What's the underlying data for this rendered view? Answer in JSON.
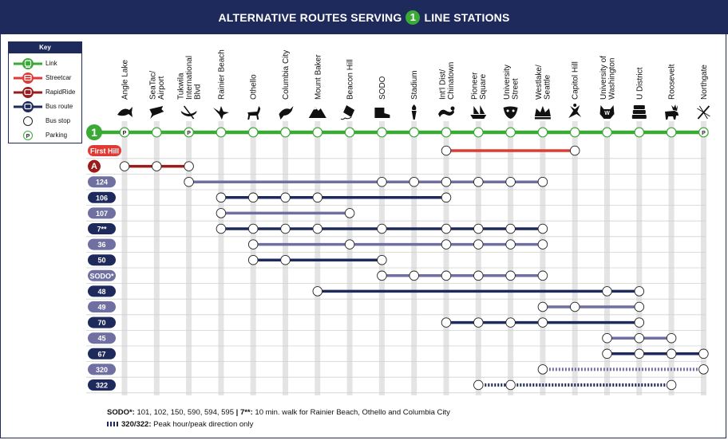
{
  "title": {
    "before": "ALTERNATIVE ROUTES SERVING",
    "line_badge": "1",
    "after": "LINE STATIONS"
  },
  "key": {
    "title": "Key",
    "items": [
      {
        "label": "Link",
        "color": "#3aa935",
        "icon": "train-icon"
      },
      {
        "label": "Streetcar",
        "color": "#e03a35",
        "icon": "streetcar-icon"
      },
      {
        "label": "RapidRide",
        "color": "#9b1b1b",
        "icon": "rapidride-bus-icon"
      },
      {
        "label": "Bus route",
        "color": "#1f2a5c",
        "icon": "bus-icon"
      },
      {
        "label": "Bus stop",
        "icon": "bus-stop-circle-icon"
      },
      {
        "label": "Parking",
        "icon": "parking-icon",
        "glyph": "P"
      }
    ]
  },
  "stations": [
    {
      "name": "Angle Lake",
      "lines": [
        "Angle Lake"
      ],
      "icon": "fish-icon",
      "parking": true
    },
    {
      "name": "SeaTac/ Airport",
      "lines": [
        "SeaTac/",
        "Airport"
      ],
      "icon": "airport-icon",
      "parking": false
    },
    {
      "name": "Tukwila International Blvd",
      "lines": [
        "Tukwila",
        "International",
        "Blvd"
      ],
      "icon": "canoe-icon",
      "parking": true
    },
    {
      "name": "Rainier Beach",
      "lines": [
        "Rainier Beach"
      ],
      "icon": "bird-icon",
      "parking": false
    },
    {
      "name": "Othello",
      "lines": [
        "Othello"
      ],
      "icon": "deer-icon",
      "parking": false
    },
    {
      "name": "Columbia City",
      "lines": [
        "Columbia City"
      ],
      "icon": "bird-branch-icon",
      "parking": false
    },
    {
      "name": "Mount Baker",
      "lines": [
        "Mount Baker"
      ],
      "icon": "mountain-icon",
      "parking": false
    },
    {
      "name": "Beacon Hill",
      "lines": [
        "Beacon Hill"
      ],
      "icon": "kite-icon",
      "parking": false
    },
    {
      "name": "SODO",
      "lines": [
        "SODO"
      ],
      "icon": "boot-icon",
      "parking": false
    },
    {
      "name": "Stadium",
      "lines": [
        "Stadium"
      ],
      "icon": "torch-icon",
      "parking": false
    },
    {
      "name": "Int'l Dist/ Chinatown",
      "lines": [
        "Int'l Dist/",
        "Chinatown"
      ],
      "icon": "dragon-icon",
      "parking": false
    },
    {
      "name": "Pioneer Square",
      "lines": [
        "Pioneer",
        "Square"
      ],
      "icon": "ship-icon",
      "parking": false
    },
    {
      "name": "University Street",
      "lines": [
        "University",
        "Street"
      ],
      "icon": "mask-icon",
      "parking": false
    },
    {
      "name": "Westlake/ Seattle",
      "lines": [
        "Westlake/",
        "Seattle"
      ],
      "icon": "crown-icon",
      "parking": false
    },
    {
      "name": "Capitol Hill",
      "lines": [
        "Capitol Hill"
      ],
      "icon": "dancer-icon",
      "parking": false
    },
    {
      "name": "University of Washington",
      "lines": [
        "University of",
        "Washington"
      ],
      "icon": "husky-icon",
      "parking": false
    },
    {
      "name": "U District",
      "lines": [
        "U District"
      ],
      "icon": "books-icon",
      "parking": false
    },
    {
      "name": "Roosevelt",
      "lines": [
        "Roosevelt"
      ],
      "icon": "moose-icon",
      "parking": false
    },
    {
      "name": "Northgate",
      "lines": [
        "Northgate"
      ],
      "icon": "dragonfly-icon",
      "parking": true
    }
  ],
  "link": {
    "badge": "1",
    "color": "#3aa935",
    "parking_glyph": "P"
  },
  "routes": [
    {
      "label": "First Hill",
      "type": "streetcar",
      "badge_color": "#e03a35",
      "line_color": "#e03a35",
      "stops": [
        10,
        14
      ]
    },
    {
      "label": "A",
      "type": "rapidride",
      "badge_color": "#9b1b1b",
      "line_color": "#9b1b1b",
      "stops": [
        0,
        1,
        2
      ]
    },
    {
      "label": "124",
      "type": "bus",
      "badge_color": "#6f6fa1",
      "line_color": "#6f6fa1",
      "stops": [
        2,
        8,
        9,
        10,
        11,
        12,
        13
      ]
    },
    {
      "label": "106",
      "type": "bus",
      "badge_color": "#1f2a5c",
      "line_color": "#1f2a5c",
      "stops": [
        3,
        4,
        5,
        6,
        10
      ]
    },
    {
      "label": "107",
      "type": "bus",
      "badge_color": "#6f6fa1",
      "line_color": "#6f6fa1",
      "stops": [
        3,
        7
      ]
    },
    {
      "label": "7**",
      "type": "bus",
      "badge_color": "#1f2a5c",
      "line_color": "#1f2a5c",
      "stops": [
        3,
        4,
        5,
        6,
        8,
        10,
        11,
        12,
        13
      ]
    },
    {
      "label": "36",
      "type": "bus",
      "badge_color": "#6f6fa1",
      "line_color": "#6f6fa1",
      "stops": [
        4,
        7,
        10,
        11,
        12,
        13
      ]
    },
    {
      "label": "50",
      "type": "bus",
      "badge_color": "#1f2a5c",
      "line_color": "#1f2a5c",
      "stops": [
        4,
        5,
        8
      ]
    },
    {
      "label": "SODO*",
      "type": "bus",
      "badge_color": "#6f6fa1",
      "line_color": "#6f6fa1",
      "stops": [
        8,
        9,
        10,
        11,
        12,
        13
      ]
    },
    {
      "label": "48",
      "type": "bus",
      "badge_color": "#1f2a5c",
      "line_color": "#1f2a5c",
      "stops": [
        6,
        15,
        16
      ]
    },
    {
      "label": "49",
      "type": "bus",
      "badge_color": "#6f6fa1",
      "line_color": "#6f6fa1",
      "stops": [
        13,
        14,
        16
      ]
    },
    {
      "label": "70",
      "type": "bus",
      "badge_color": "#1f2a5c",
      "line_color": "#1f2a5c",
      "stops": [
        10,
        11,
        12,
        13,
        16
      ]
    },
    {
      "label": "45",
      "type": "bus",
      "badge_color": "#6f6fa1",
      "line_color": "#6f6fa1",
      "stops": [
        15,
        16,
        17
      ]
    },
    {
      "label": "67",
      "type": "bus",
      "badge_color": "#1f2a5c",
      "line_color": "#1f2a5c",
      "stops": [
        15,
        16,
        17,
        18
      ]
    },
    {
      "label": "320",
      "type": "bus",
      "peak_only": true,
      "badge_color": "#6f6fa1",
      "line_color": "#6f6fa1",
      "stops": [
        13,
        18
      ]
    },
    {
      "label": "322",
      "type": "bus",
      "peak_only": true,
      "badge_color": "#1f2a5c",
      "line_color": "#1f2a5c",
      "stops": [
        11,
        12,
        17
      ]
    }
  ],
  "footer": {
    "sodo_label": "SODO*:",
    "sodo_text": "101, 102, 150, 590, 594, 595",
    "separator": "|",
    "seven_label": "7**:",
    "seven_text": "10 min. walk for Rainier Beach, Othello and Columbia City",
    "peak_label": "320/322:",
    "peak_text": "Peak hour/peak direction only"
  }
}
